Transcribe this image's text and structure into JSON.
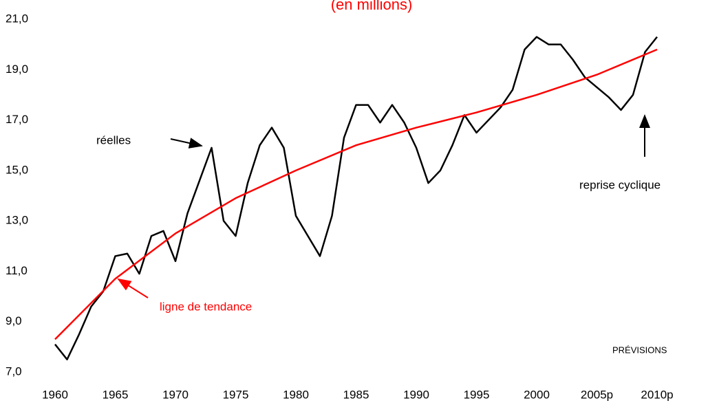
{
  "chart_data": {
    "type": "line",
    "subtitle": "(en millions)",
    "xlim": [
      1960,
      2010
    ],
    "xticks": [
      1960,
      1965,
      1970,
      1975,
      1980,
      1985,
      1990,
      1995,
      2000,
      {
        "value": 2005,
        "label": "2005p"
      },
      {
        "value": 2010,
        "label": "2010p"
      }
    ],
    "ylim": [
      7,
      21
    ],
    "yticks": [
      {
        "value": 7,
        "label": "7,0"
      },
      {
        "value": 9,
        "label": "9,0"
      },
      {
        "value": 11,
        "label": "11,0"
      },
      {
        "value": 13,
        "label": "13,0"
      },
      {
        "value": 15,
        "label": "15,0"
      },
      {
        "value": 17,
        "label": "17,0"
      },
      {
        "value": 19,
        "label": "19,0"
      },
      {
        "value": 21,
        "label": "21,0"
      }
    ],
    "grid": false,
    "series": [
      {
        "color": "#000000",
        "x": [
          1960,
          1961,
          1962,
          1963,
          1964,
          1965,
          1966,
          1967,
          1968,
          1969,
          1970,
          1971,
          1972,
          1973,
          1974,
          1975,
          1976,
          1977,
          1978,
          1979,
          1980,
          1981,
          1982,
          1983,
          1984,
          1985,
          1986,
          1987,
          1988,
          1989,
          1990,
          1991,
          1992,
          1993,
          1994,
          1995,
          1996,
          1997,
          1998,
          1999,
          2000,
          2001,
          2002,
          2003,
          2004,
          2005,
          2006,
          2007,
          2008,
          2009,
          2010
        ],
        "values": [
          8.1,
          7.5,
          8.5,
          9.6,
          10.2,
          11.6,
          11.7,
          10.9,
          12.4,
          12.6,
          11.4,
          13.3,
          14.6,
          15.9,
          13.0,
          12.4,
          14.5,
          16.0,
          16.7,
          15.9,
          13.2,
          12.4,
          11.6,
          13.2,
          16.3,
          17.6,
          17.6,
          16.9,
          17.6,
          16.9,
          15.9,
          14.5,
          15.0,
          16.0,
          17.2,
          16.5,
          17.0,
          17.5,
          18.2,
          19.8,
          20.3,
          20.0,
          20.0,
          19.4,
          18.7,
          18.3,
          17.9,
          17.4,
          18.0,
          19.7,
          20.3
        ]
      },
      {
        "color": "#ff0000",
        "x": [
          1960,
          1965,
          1970,
          1975,
          1980,
          1985,
          1990,
          1995,
          2000,
          2005,
          2010
        ],
        "values": [
          8.3,
          10.7,
          12.5,
          13.9,
          15.0,
          16.0,
          16.7,
          17.3,
          18.0,
          18.8,
          19.8
        ]
      }
    ],
    "annotations": [
      "réelles",
      "ligne de tendance",
      "reprise cyclique",
      "PRÉVISIONS"
    ]
  }
}
